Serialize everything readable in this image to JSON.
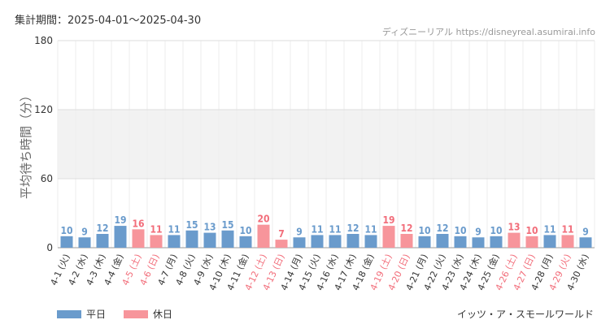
{
  "header": {
    "period": "集計期間：2025-04-01〜2025-04-30",
    "attribution": "ディズニーリアル https://disneyreal.asumirai.info"
  },
  "colors": {
    "weekday": "#6a9bcc",
    "holiday": "#f7959b",
    "holiday_label": "#f26d7a",
    "band": "#f2f2f2"
  },
  "legend": {
    "weekday": "平日",
    "holiday": "休日"
  },
  "attraction": "イッツ・ア・スモールワールド",
  "chart_data": {
    "type": "bar",
    "ylabel": "平均待ち時間（分）",
    "ylim": [
      0,
      180
    ],
    "yticks": [
      0,
      60,
      120,
      180
    ],
    "bands": [
      [
        60,
        120
      ]
    ],
    "categories": [
      "4-1 (火)",
      "4-2 (水)",
      "4-3 (木)",
      "4-4 (金)",
      "4-5 (土)",
      "4-6 (日)",
      "4-7 (月)",
      "4-8 (火)",
      "4-9 (水)",
      "4-10 (木)",
      "4-11 (金)",
      "4-12 (土)",
      "4-13 (日)",
      "4-14 (月)",
      "4-15 (火)",
      "4-16 (水)",
      "4-17 (木)",
      "4-18 (金)",
      "4-19 (土)",
      "4-20 (日)",
      "4-21 (月)",
      "4-22 (火)",
      "4-23 (水)",
      "4-24 (木)",
      "4-25 (金)",
      "4-26 (土)",
      "4-27 (日)",
      "4-28 (月)",
      "4-29 (火)",
      "4-30 (水)"
    ],
    "values": [
      10,
      9,
      12,
      19,
      16,
      11,
      11,
      15,
      13,
      15,
      10,
      20,
      7,
      9,
      11,
      11,
      12,
      11,
      19,
      12,
      10,
      12,
      10,
      9,
      10,
      13,
      10,
      11,
      11,
      9
    ],
    "holiday": [
      false,
      false,
      false,
      false,
      true,
      true,
      false,
      false,
      false,
      false,
      false,
      true,
      true,
      false,
      false,
      false,
      false,
      false,
      true,
      true,
      false,
      false,
      false,
      false,
      false,
      true,
      true,
      false,
      true,
      false
    ]
  }
}
